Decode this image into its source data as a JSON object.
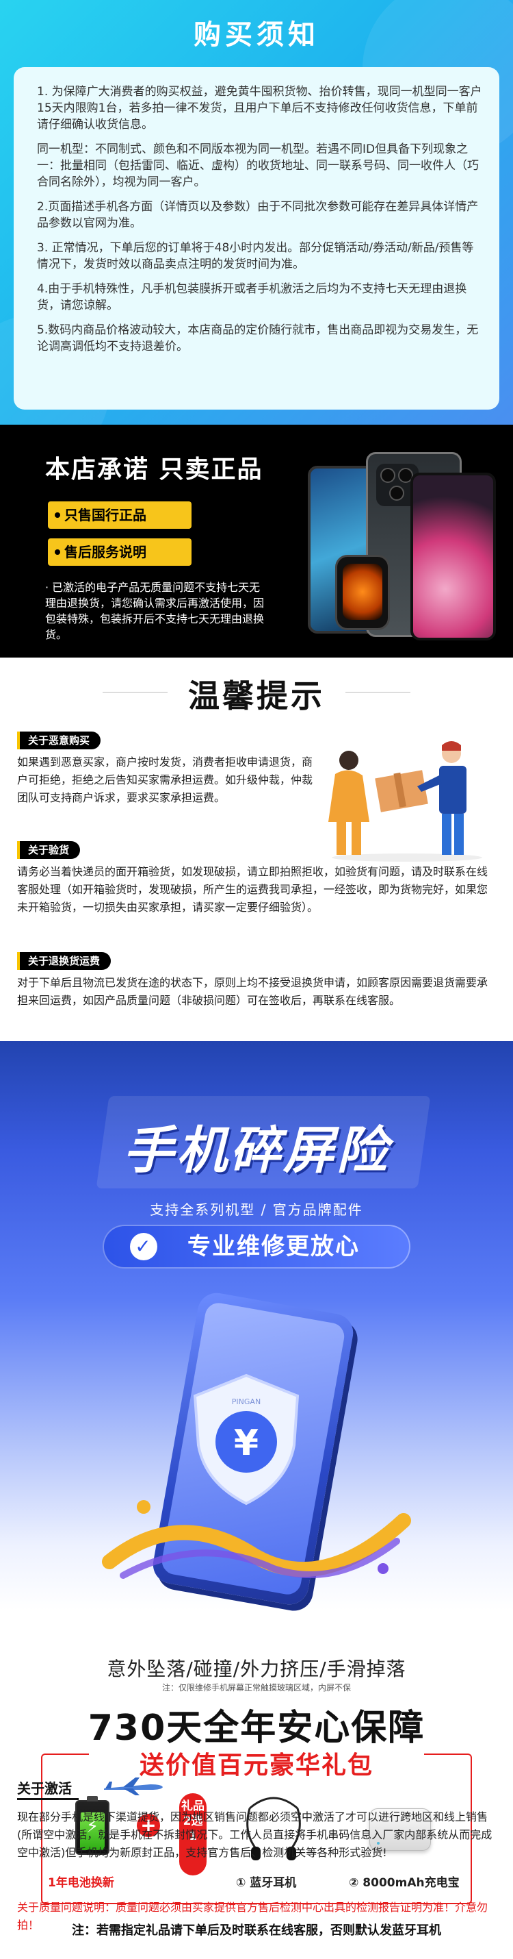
{
  "purchase_notice": {
    "title": "购买须知",
    "items": [
      "1. 为保障广大消费者的购买权益，避免黄牛囤积货物、抬价转售，现同一机型同一客户15天内限购1台，若多拍一律不发货，且用户下单后不支持修改任何收货信息，下单前请仔细确认收货信息。",
      "同一机型：不同制式、颜色和不同版本视为同一机型。若遇不同ID但具备下列现象之一：批量相同（包括雷同、临近、虚构）的收货地址、同一联系号码、同一收件人（巧合同名除外），均视为同一客户。",
      "2.页面描述手机各方面（详情页以及参数）由于不同批次参数可能存在差异具体详情产品参数以官网为准。",
      "3. 正常情况，下单后您的订单将于48小时内发出。部分促销活动/券活动/新品/预售等情况下，发货时效以商品卖点注明的发货时间为准。",
      "4.由于手机特殊性，凡手机包装膜拆开或者手机激活之后均为不支持七天无理由退换货，请您谅解。",
      "5.数码内商品价格波动较大，本店商品的定价随行就市，售出商品即视为交易发生，无论调高调低均不支持退差价。"
    ]
  },
  "store_promise": {
    "title": "本店承诺 只卖正品",
    "badges": [
      "只售国行正品",
      "售后服务说明"
    ],
    "note": "· 已激活的电子产品无质量问题不支持七天无理由退换货，请您确认需求后再激活使用，因包装特殊，包装拆开后不支持七天无理由退换货。"
  },
  "tips": {
    "title": "温馨提示",
    "sections": [
      {
        "tag": "关于恶意购买",
        "text": "如果遇到恶意买家，商户按时发货，消费者拒收申请退货，商户可拒绝，拒绝之后告知买家需承担运费。如升级仲裁，仲裁团队可支持商户诉求，要求买家承担运费。"
      },
      {
        "tag": "关于验货",
        "text": "请务必当着快递员的面开箱验货，如发现破损，请立即拍照拒收，如验货有问题，请及时联系在线客服处理（如开箱验货时，发现破损，所产生的运费我司承担，一经签收，即为货物完好，如果您未开箱验货，一切损失由买家承担，请买家一定要仔细验货）。"
      },
      {
        "tag": "关于退换货运费",
        "text": "对于下单后且物流已发货在途的状态下，原则上均不接受退换货申请，如顾客原因需要退货需要承担来回运费，如因产品质量问题（非破损问题）可在签收后，再联系在线客服。"
      }
    ]
  },
  "insurance": {
    "title": "手机碎屏险",
    "subtitle": "支持全系列机型 / 官方品牌配件",
    "pill": "专业维修更放心",
    "shield_text": "PINGAN",
    "shield_symbol": "¥",
    "coverage": "意外坠落/碰撞/外力挤压/手滑掉落",
    "coverage_note": "注：仅限维修手机屏幕正常触摸玻璃区域，内屏不保",
    "headline": "730天全年安心保障",
    "gift_title": "送价值百元豪华礼包",
    "gift_battery": "1年电池换新",
    "gift_choose": "礼品2选1",
    "gift_option1": "① 蓝牙耳机",
    "gift_option2": "② 8000mAh充电宝",
    "note": "注：若需指定礼品请下单后及时联系在线客服，否则默认发蓝牙耳机"
  },
  "activation": {
    "title": "关于激活",
    "text": "现在部分手机是线下渠道提货，因为地区销售问题都必须空中激活了才可以进行跨地区和线上销售(所谓空中激活，就是手机在不拆封情况下。工作人员直接将手机串码信息入厂家内部系统从而完成空中激活)但手机均为新原封正品，支持官方售后、检测机关等各种形式验货!",
    "warning": "关于质量问题说明：质量问题必须由买家提供官方售后检测中心出具的检测报告证明为准！介意勿拍！"
  },
  "colors": {
    "accent_red": "#e61e1e",
    "accent_yellow": "#f7c51b",
    "brand_blue": "#2d53e8"
  }
}
